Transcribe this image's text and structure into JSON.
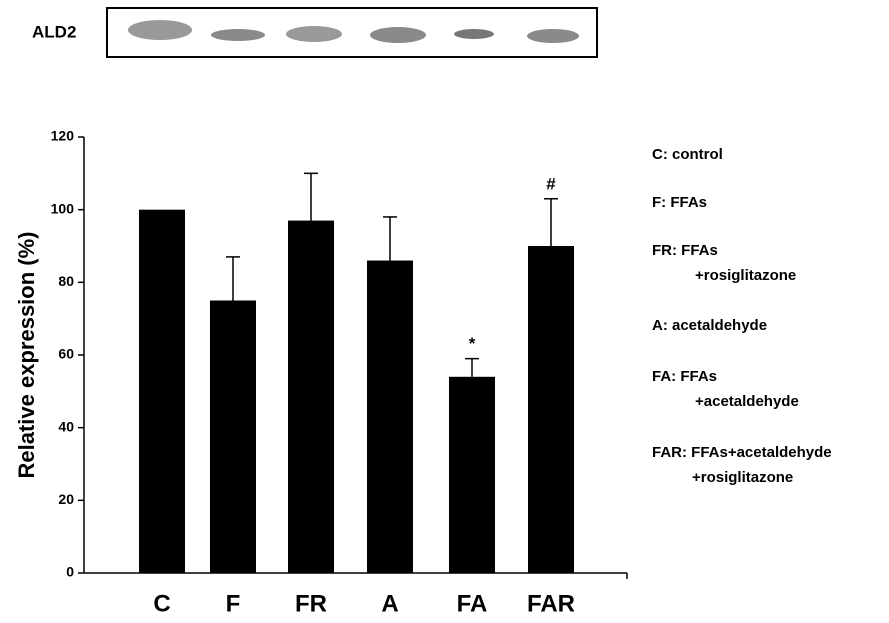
{
  "blot_label": "ALD2",
  "chart_data": {
    "type": "bar",
    "ylabel": "Relative expression (%)",
    "categories": [
      "C",
      "F",
      "FR",
      "A",
      "FA",
      "FAR"
    ],
    "values": [
      100,
      75,
      97,
      86,
      54,
      90
    ],
    "errors": [
      null,
      12,
      13,
      12,
      5,
      13
    ],
    "bar_annotations": [
      null,
      null,
      null,
      null,
      "*",
      "#"
    ],
    "color": "#000000",
    "ylim": [
      0,
      120
    ],
    "yticks": [
      0,
      20,
      40,
      60,
      80,
      100,
      120
    ],
    "legend_notes": [
      [
        "C: control"
      ],
      [
        "F: FFAs"
      ],
      [
        "FR: FFAs",
        "+rosiglitazone"
      ],
      [
        "A: acetaldehyde"
      ],
      [
        "FA: FFAs",
        "+acetaldehyde"
      ],
      [
        "FAR: FFAs+acetaldehyde",
        "+rosiglitazone"
      ]
    ]
  }
}
